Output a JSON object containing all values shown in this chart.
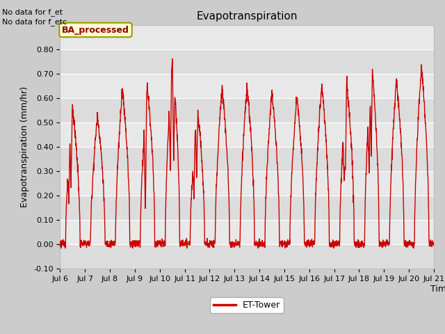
{
  "title": "Evapotranspiration",
  "xlabel": "Time",
  "ylabel": "Evapotranspiration (mm/hr)",
  "ylim": [
    -0.1,
    0.9
  ],
  "yticks": [
    -0.1,
    0.0,
    0.1,
    0.2,
    0.3,
    0.4,
    0.5,
    0.6,
    0.7,
    0.8
  ],
  "xtick_labels": [
    "Jul 6",
    "Jul 7",
    "Jul 8",
    "Jul 9",
    "Jul 10",
    "Jul 11",
    "Jul 12",
    "Jul 13",
    "Jul 14",
    "Jul 15",
    "Jul 16",
    "Jul 17",
    "Jul 18",
    "Jul 19",
    "Jul 20",
    "Jul 21"
  ],
  "line_color": "#cc0000",
  "line_width": 1.0,
  "legend_label": "ET-Tower",
  "top_left_text1": "No data for f_et",
  "top_left_text2": "No data for f_etc",
  "box_label": "BA_processed",
  "fig_bg_color": "#cccccc",
  "plot_bg_color": "#e8e8e8",
  "grid_color": "#ffffff",
  "grid_band_color1": "#dcdcdc",
  "grid_band_color2": "#e8e8e8"
}
